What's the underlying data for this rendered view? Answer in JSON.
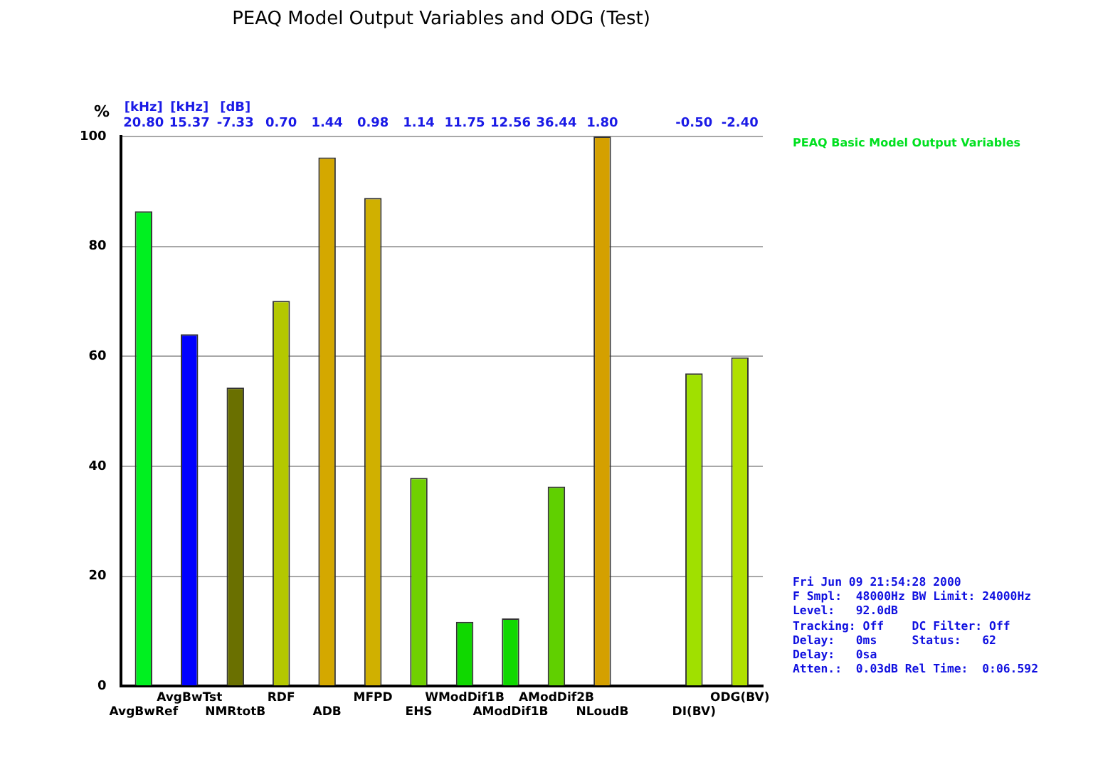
{
  "chart_data": {
    "type": "bar",
    "title": "PEAQ Model Output Variables and ODG (Test)",
    "ylabel": "%",
    "legend_title": "PEAQ Basic Model Output Variables",
    "categories": [
      "AvgBwRef",
      "AvgBwTst",
      "NMRtotB",
      "RDF",
      "ADB",
      "MFPD",
      "EHS",
      "WModDif1B",
      "AModDif1B",
      "AModDif2B",
      "NLoudB",
      null,
      "DI(BV)",
      "ODG(BV)"
    ],
    "values": [
      86.4,
      64.0,
      54.3,
      70.1,
      96.2,
      88.8,
      37.9,
      11.7,
      12.3,
      36.3,
      100,
      null,
      56.9,
      59.8
    ],
    "colors": [
      "#00f020",
      "#0000ff",
      "#6a7000",
      "#b4c800",
      "#d4a800",
      "#d0b000",
      "#70d000",
      "#10d800",
      "#10d800",
      "#60d000",
      "#d4a000",
      "#000000",
      "#a0e000",
      "#b0e000"
    ],
    "ylim": [
      0,
      100
    ],
    "yticks": [
      0,
      20,
      40,
      60,
      80,
      100
    ],
    "grid": "y",
    "legend": false,
    "annotations": [
      "[kHz] [kHz] [dB]",
      "20.80 15.37 -7.33 0.70 1.44 0.98 1.14 11.75 12.56 36.44 1.80 -0.50 -2.40",
      "Fri Jun 09 21:54:28 2000",
      "F Smpl:  48000Hz BW Limit: 24000Hz",
      "Level:   92.0dB",
      "Tracking: Off    DC Filter: Off",
      "Delay:   0ms     Status:   62",
      "Delay:   0sa",
      "Atten.:  0.03dB Rel Time:  0:06.592"
    ]
  }
}
